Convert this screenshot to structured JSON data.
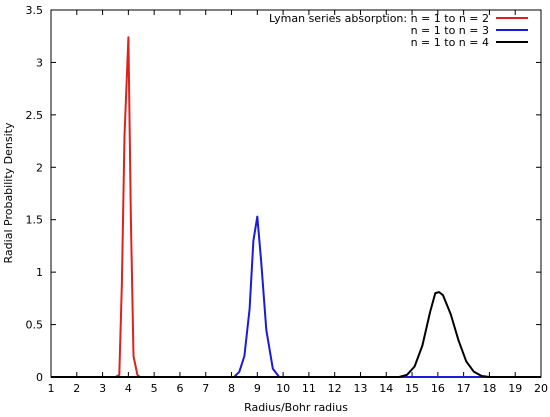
{
  "chart_data": {
    "type": "line",
    "xlabel": "Radius/Bohr radius",
    "ylabel": "Radial Probability Density",
    "xlim": [
      1,
      20
    ],
    "ylim": [
      0,
      3.5
    ],
    "x_ticks": [
      "1",
      "2",
      "3",
      "4",
      "5",
      "6",
      "7",
      "8",
      "9",
      "10",
      "11",
      "12",
      "13",
      "14",
      "15",
      "16",
      "17",
      "18",
      "19",
      "20"
    ],
    "y_ticks": [
      "0",
      "0.5",
      "1",
      "1.5",
      "2",
      "2.5",
      "3",
      "3.5"
    ],
    "grid": false,
    "legend_position": "top-right",
    "series": [
      {
        "name": "Lyman series absorption: n = 1 to n = 2",
        "color": "#e0201b",
        "x": [
          1,
          3.5,
          3.65,
          3.75,
          3.85,
          4.0,
          4.1,
          4.2,
          4.35,
          4.45,
          20
        ],
        "y": [
          0,
          0,
          0.02,
          0.9,
          2.3,
          3.24,
          1.5,
          0.2,
          0.02,
          0,
          0
        ]
      },
      {
        "name": "n = 1 to n = 3",
        "color": "#1a1adb",
        "x": [
          1,
          8.1,
          8.3,
          8.5,
          8.7,
          8.85,
          9.0,
          9.15,
          9.35,
          9.6,
          9.85,
          20
        ],
        "y": [
          0,
          0,
          0.05,
          0.2,
          0.65,
          1.3,
          1.53,
          1.1,
          0.45,
          0.08,
          0,
          0
        ]
      },
      {
        "name": "n = 1 to n = 4",
        "color": "#000000",
        "x": [
          1,
          14.5,
          14.8,
          15.1,
          15.4,
          15.7,
          15.9,
          16.05,
          16.2,
          16.5,
          16.8,
          17.1,
          17.4,
          17.7,
          18,
          20
        ],
        "y": [
          0,
          0,
          0.02,
          0.1,
          0.3,
          0.62,
          0.8,
          0.81,
          0.78,
          0.6,
          0.35,
          0.15,
          0.05,
          0.01,
          0,
          0
        ]
      }
    ]
  }
}
